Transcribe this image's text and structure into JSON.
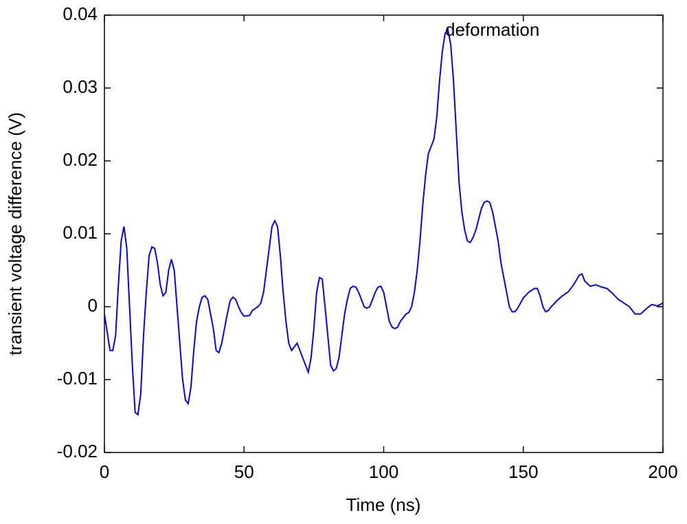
{
  "chart_data": {
    "type": "line",
    "xlabel": "Time (ns)",
    "ylabel": "transient voltage difference (V)",
    "annotation": "deformation",
    "color": "#0000ff",
    "x": [
      0,
      2,
      3,
      4,
      5,
      6,
      7,
      8,
      9,
      10,
      11,
      12,
      13,
      14,
      15,
      16,
      17,
      18,
      19,
      20,
      21,
      22,
      23,
      24,
      25,
      26,
      27,
      28,
      29,
      30,
      31,
      32,
      33,
      34,
      35,
      36,
      37,
      38,
      39,
      40,
      41,
      42,
      43,
      44,
      45,
      46,
      47,
      48,
      49,
      50,
      52,
      53,
      55,
      56,
      57,
      58,
      59,
      60,
      61,
      62,
      63,
      64,
      65,
      66,
      67,
      68,
      69,
      70,
      71,
      72,
      73,
      74,
      75,
      76,
      77,
      78,
      79,
      80,
      81,
      82,
      83,
      84,
      85,
      86,
      87,
      88,
      89,
      90,
      91,
      92,
      93,
      94,
      95,
      96,
      97,
      98,
      99,
      100,
      101,
      102,
      103,
      104,
      105,
      106,
      107,
      108,
      109,
      110,
      111,
      112,
      113,
      114,
      115,
      116,
      117,
      118,
      119,
      120,
      121,
      122,
      123,
      124,
      125,
      126,
      127,
      128,
      129,
      130,
      131,
      132,
      133,
      134,
      135,
      136,
      137,
      138,
      139,
      140,
      141,
      142,
      143,
      144,
      145,
      146,
      147,
      148,
      149,
      150,
      152,
      154,
      155,
      156,
      157,
      158,
      159,
      160,
      162,
      164,
      166,
      168,
      170,
      171,
      172,
      174,
      176,
      178,
      180,
      182,
      184,
      186,
      188,
      190,
      192,
      194,
      196,
      198,
      200
    ],
    "values": [
      -0.001,
      -0.006,
      -0.006,
      -0.004,
      0.003,
      0.009,
      0.011,
      0.008,
      0.0,
      -0.008,
      -0.0145,
      -0.0148,
      -0.012,
      -0.004,
      0.002,
      0.007,
      0.0082,
      0.008,
      0.006,
      0.003,
      0.0015,
      0.002,
      0.005,
      0.0065,
      0.005,
      0.0,
      -0.005,
      -0.01,
      -0.0128,
      -0.0133,
      -0.011,
      -0.006,
      -0.002,
      0.0,
      0.0013,
      0.0015,
      0.001,
      -0.001,
      -0.003,
      -0.006,
      -0.0063,
      -0.005,
      -0.003,
      -0.001,
      0.0008,
      0.0013,
      0.001,
      0.0,
      -0.0008,
      -0.0013,
      -0.0012,
      -0.0005,
      0.0,
      0.0005,
      0.002,
      0.005,
      0.008,
      0.011,
      0.0118,
      0.011,
      0.007,
      0.002,
      -0.002,
      -0.005,
      -0.006,
      -0.0055,
      -0.005,
      -0.006,
      -0.007,
      -0.008,
      -0.009,
      -0.007,
      -0.003,
      0.002,
      0.004,
      0.0038,
      0.0,
      -0.004,
      -0.008,
      -0.0088,
      -0.0085,
      -0.007,
      -0.004,
      -0.001,
      0.001,
      0.0025,
      0.0028,
      0.0027,
      0.002,
      0.001,
      0.0,
      -0.0002,
      0.0,
      0.001,
      0.002,
      0.0027,
      0.0028,
      0.002,
      0.0,
      -0.002,
      -0.0028,
      -0.003,
      -0.0028,
      -0.002,
      -0.0015,
      -0.001,
      -0.0008,
      0.0,
      0.002,
      0.005,
      0.009,
      0.014,
      0.018,
      0.021,
      0.022,
      0.023,
      0.026,
      0.031,
      0.035,
      0.0375,
      0.038,
      0.036,
      0.031,
      0.024,
      0.017,
      0.013,
      0.0105,
      0.009,
      0.0088,
      0.0095,
      0.0105,
      0.012,
      0.0135,
      0.0143,
      0.0145,
      0.0143,
      0.013,
      0.011,
      0.009,
      0.006,
      0.004,
      0.002,
      0.0,
      -0.0007,
      -0.0007,
      -0.0002,
      0.0005,
      0.0012,
      0.002,
      0.0025,
      0.0025,
      0.0015,
      0.0,
      -0.0007,
      -0.0005,
      0.0,
      0.0008,
      0.0015,
      0.002,
      0.003,
      0.0043,
      0.0045,
      0.0035,
      0.0028,
      0.003,
      0.0027,
      0.0025,
      0.0018,
      0.001,
      0.0005,
      0.0,
      -0.001,
      -0.001,
      -0.0003,
      0.0003,
      0.0001,
      0.0005
    ],
    "xlim": [
      0,
      200
    ],
    "xticks": [
      0,
      50,
      100,
      150,
      200
    ],
    "ylim": [
      -0.02,
      0.04
    ],
    "yticks": [
      -0.02,
      -0.01,
      0,
      0.01,
      0.02,
      0.03,
      0.04
    ],
    "grid": false
  }
}
